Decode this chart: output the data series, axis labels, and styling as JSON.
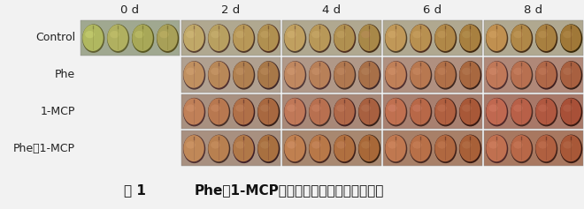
{
  "title_part1": "图 1",
  "title_part2": "Phe和1-MCP处理对桃果实外观色泽的影响",
  "time_labels": [
    "0 d",
    "2 d",
    "4 d",
    "6 d",
    "8 d"
  ],
  "row_labels": [
    "Control",
    "Phe",
    "1-MCP",
    "Phe＋1-MCP"
  ],
  "background_color": "#f2f2f2",
  "panel_bg_light": "#c8c8c8",
  "panel_bg_dark": "#a0a0a0",
  "fruit_data": [
    [
      {
        "bg": "#a0a890",
        "fruits": [
          [
            "#b0b860",
            "#d0d878",
            "#888840",
            "#606030"
          ],
          [
            "#b0b060",
            "#ccc870",
            "#888838",
            "#606030"
          ],
          [
            "#a8a858",
            "#c8c870",
            "#808030",
            "#585820"
          ],
          [
            "#a8a058",
            "#c8b868",
            "#807830",
            "#585020"
          ]
        ]
      },
      {
        "bg": "#b0a890",
        "fruits": [
          [
            "#c0a868",
            "#d8c080",
            "#906848",
            "#584030"
          ],
          [
            "#b8a060",
            "#d0b878",
            "#886040",
            "#584030"
          ],
          [
            "#b89858",
            "#ccb070",
            "#886038",
            "#503828"
          ],
          [
            "#b09050",
            "#c8a868",
            "#805830",
            "#503020"
          ]
        ]
      },
      {
        "bg": "#b0a890",
        "fruits": [
          [
            "#c0a060",
            "#d8b878",
            "#906040",
            "#504030"
          ],
          [
            "#b89858",
            "#d0b070",
            "#886038",
            "#503828"
          ],
          [
            "#b09050",
            "#c8a868",
            "#805830",
            "#503020"
          ],
          [
            "#a88848",
            "#c09060",
            "#784830",
            "#483018"
          ]
        ]
      },
      {
        "bg": "#b0a890",
        "fruits": [
          [
            "#c09858",
            "#d8b070",
            "#906038",
            "#504028"
          ],
          [
            "#b89050",
            "#d0a868",
            "#885830",
            "#503020"
          ],
          [
            "#b08848",
            "#c8a060",
            "#805028",
            "#483018"
          ],
          [
            "#a88040",
            "#b89858",
            "#784828",
            "#402810"
          ]
        ]
      },
      {
        "bg": "#b0a890",
        "fruits": [
          [
            "#c09050",
            "#d8a868",
            "#906030",
            "#503820"
          ],
          [
            "#b08848",
            "#c8a060",
            "#885028",
            "#483018"
          ],
          [
            "#a88040",
            "#c09858",
            "#784828",
            "#402810"
          ],
          [
            "#a07838",
            "#b89050",
            "#704020",
            "#382808"
          ]
        ]
      }
    ],
    [
      null,
      {
        "bg": "#b0a090",
        "fruits": [
          [
            "#c09060",
            "#d8a878",
            "#906050",
            "#503838"
          ],
          [
            "#b88858",
            "#d0a070",
            "#885848",
            "#503030"
          ],
          [
            "#b08050",
            "#c89868",
            "#805040",
            "#483028"
          ],
          [
            "#a87848",
            "#c09060",
            "#784838",
            "#402828"
          ]
        ]
      },
      {
        "bg": "#b09888",
        "fruits": [
          [
            "#c08860",
            "#d8a078",
            "#906050",
            "#503838"
          ],
          [
            "#b88058",
            "#d09870",
            "#885848",
            "#503030"
          ],
          [
            "#b07850",
            "#c89068",
            "#805040",
            "#483028"
          ],
          [
            "#a87048",
            "#b88860",
            "#784838",
            "#402828"
          ]
        ]
      },
      {
        "bg": "#b09080",
        "fruits": [
          [
            "#c08058",
            "#d89870",
            "#906048",
            "#503030"
          ],
          [
            "#b87850",
            "#d09068",
            "#885040",
            "#483028"
          ],
          [
            "#b07048",
            "#c88860",
            "#804838",
            "#402820"
          ],
          [
            "#a86840",
            "#b88058",
            "#784030",
            "#382018"
          ]
        ]
      },
      {
        "bg": "#b08878",
        "fruits": [
          [
            "#c07858",
            "#d89070",
            "#906048",
            "#503030"
          ],
          [
            "#b87050",
            "#d08868",
            "#885040",
            "#483028"
          ],
          [
            "#b06848",
            "#c88060",
            "#804038",
            "#402020"
          ],
          [
            "#a86040",
            "#b87858",
            "#784030",
            "#382018"
          ]
        ]
      }
    ],
    [
      null,
      {
        "bg": "#a89080",
        "fruits": [
          [
            "#c08058",
            "#d89870",
            "#906048",
            "#503030"
          ],
          [
            "#b87850",
            "#d09068",
            "#885040",
            "#483028"
          ],
          [
            "#b07048",
            "#c88860",
            "#804038",
            "#402020"
          ],
          [
            "#a86840",
            "#b88058",
            "#784030",
            "#382018"
          ]
        ]
      },
      {
        "bg": "#a88878",
        "fruits": [
          [
            "#c07858",
            "#d89070",
            "#906048",
            "#503030"
          ],
          [
            "#b87050",
            "#d08868",
            "#885040",
            "#483028"
          ],
          [
            "#b06848",
            "#c88060",
            "#804038",
            "#402020"
          ],
          [
            "#a86040",
            "#b87858",
            "#784030",
            "#382018"
          ]
        ]
      },
      {
        "bg": "#a88070",
        "fruits": [
          [
            "#c07050",
            "#d88870",
            "#906040",
            "#503028"
          ],
          [
            "#b86848",
            "#d08068",
            "#885038",
            "#482820"
          ],
          [
            "#b06040",
            "#c87858",
            "#804030",
            "#402018"
          ],
          [
            "#a85838",
            "#b87050",
            "#784028",
            "#381810"
          ]
        ]
      },
      {
        "bg": "#a87868",
        "fruits": [
          [
            "#c06850",
            "#d88068",
            "#906040",
            "#502828"
          ],
          [
            "#b86048",
            "#d07860",
            "#885038",
            "#482820"
          ],
          [
            "#b05840",
            "#c87058",
            "#804030",
            "#402018"
          ],
          [
            "#a85038",
            "#b86850",
            "#784028",
            "#381810"
          ]
        ]
      }
    ],
    [
      null,
      {
        "bg": "#a89080",
        "fruits": [
          [
            "#c08858",
            "#d8a070",
            "#906048",
            "#503030"
          ],
          [
            "#b88050",
            "#d09868",
            "#885040",
            "#483028"
          ],
          [
            "#b07848",
            "#c89060",
            "#804038",
            "#402028"
          ],
          [
            "#a87040",
            "#b88858",
            "#784030",
            "#382020"
          ]
        ]
      },
      {
        "bg": "#a88870",
        "fruits": [
          [
            "#c08050",
            "#d89870",
            "#906040",
            "#503028"
          ],
          [
            "#b87848",
            "#d09068",
            "#885038",
            "#482820"
          ],
          [
            "#b07040",
            "#c88860",
            "#804030",
            "#402018"
          ],
          [
            "#a86838",
            "#b88050",
            "#784028",
            "#382010"
          ]
        ]
      },
      {
        "bg": "#a88068",
        "fruits": [
          [
            "#c07850",
            "#d89068",
            "#906040",
            "#503028"
          ],
          [
            "#b87048",
            "#d08860",
            "#885038",
            "#482820"
          ],
          [
            "#b06840",
            "#c88058",
            "#804030",
            "#402018"
          ],
          [
            "#a86038",
            "#b87850",
            "#784028",
            "#381810"
          ]
        ]
      },
      {
        "bg": "#a87860",
        "fruits": [
          [
            "#c07050",
            "#d88868",
            "#906040",
            "#502828"
          ],
          [
            "#b86848",
            "#d08060",
            "#885038",
            "#482820"
          ],
          [
            "#b06040",
            "#c87858",
            "#804030",
            "#402018"
          ],
          [
            "#a85838",
            "#b87050",
            "#784028",
            "#381810"
          ]
        ]
      }
    ]
  ],
  "fig_width": 6.6,
  "fig_height": 2.37,
  "dpi": 100
}
